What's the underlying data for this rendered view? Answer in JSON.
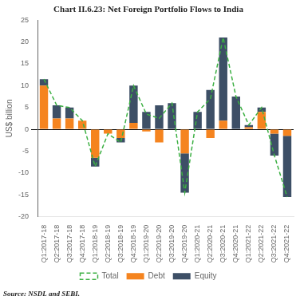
{
  "chart_data": {
    "type": "bar",
    "title": "Chart II.6.23: Net Foreign Portfolio Flows to India",
    "ylabel": "US$ billion",
    "source": "Source: NSDL and SEBI.",
    "categories": [
      "Q1:2017-18",
      "Q2:2017-18",
      "Q3:2017-18",
      "Q4:2017-18",
      "Q1:2018-19",
      "Q2:2018-19",
      "Q3:2018-19",
      "Q4:2018-19",
      "Q1:2019-20",
      "Q2:2019-20",
      "Q3:2019-20",
      "Q4:2019-20",
      "Q1:2020-21",
      "Q2:2020-21",
      "Q3:2020-21",
      "Q4:2020-21",
      "Q1:2021-22",
      "Q2:2021-22",
      "Q3:2021-22",
      "Q4:2021-22"
    ],
    "series": [
      {
        "name": "Debt",
        "type": "bar",
        "color": "#F5841F",
        "values": [
          10.0,
          2.5,
          2.5,
          2.0,
          -6.5,
          -1.0,
          -2.0,
          1.5,
          -0.5,
          -3.0,
          0.0,
          -5.5,
          0.0,
          -2.0,
          2.0,
          0.0,
          0.5,
          4.0,
          -1.0,
          -1.5
        ]
      },
      {
        "name": "Equity",
        "type": "bar",
        "color": "#3D4F66",
        "values": [
          1.5,
          3.0,
          2.5,
          0.0,
          -2.0,
          0.0,
          -1.0,
          8.5,
          4.0,
          5.5,
          6.0,
          -9.0,
          4.0,
          9.0,
          19.0,
          7.5,
          0.5,
          1.0,
          -5.0,
          -14.0
        ]
      },
      {
        "name": "Total",
        "type": "line",
        "line_style": "dashed",
        "color": "#3CB043",
        "values": [
          11.5,
          5.5,
          5.0,
          2.0,
          -8.5,
          -1.0,
          -3.0,
          10.0,
          3.5,
          2.5,
          6.0,
          -14.5,
          4.0,
          7.0,
          21.0,
          7.5,
          1.0,
          5.0,
          -6.0,
          -15.5
        ]
      }
    ],
    "stacked": true,
    "ylim": [
      -20,
      25
    ],
    "yticks": [
      -20,
      -15,
      -10,
      -5,
      0,
      5,
      10,
      15,
      20,
      25
    ],
    "grid": false,
    "legend": "bottom"
  }
}
